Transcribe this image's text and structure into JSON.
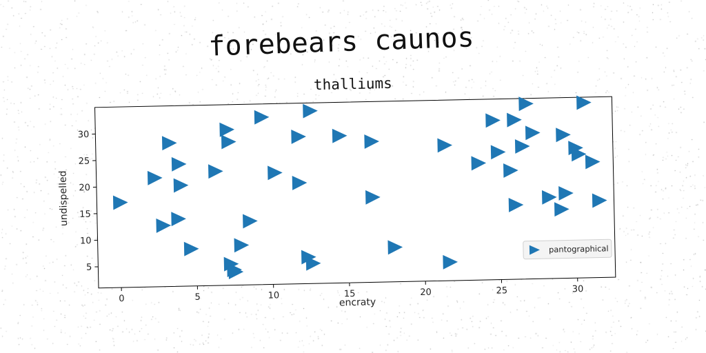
{
  "suptitle": "forebears caunos",
  "chart_data": {
    "type": "scatter",
    "title": "thalliums",
    "xlabel": "encraty",
    "ylabel": "undispelled",
    "xlim": [
      -1.5,
      32.5
    ],
    "ylim": [
      1,
      35
    ],
    "xticks": [
      "0",
      "5",
      "10",
      "15",
      "20",
      "25",
      "30"
    ],
    "yticks": [
      "5",
      "10",
      "15",
      "20",
      "25",
      "30"
    ],
    "grid": false,
    "legend_position": "lower-right",
    "marker": "triangle-right",
    "color": "#1f77b4",
    "series": [
      {
        "name": "pantographical",
        "points": [
          [
            0,
            17
          ],
          [
            2.3,
            21.5
          ],
          [
            3.3,
            28
          ],
          [
            2.8,
            12.5
          ],
          [
            3.8,
            13.7
          ],
          [
            3.9,
            24
          ],
          [
            4,
            20
          ],
          [
            4.6,
            8
          ],
          [
            6.3,
            22.5
          ],
          [
            7.1,
            30.3
          ],
          [
            7.2,
            28
          ],
          [
            7.4,
            3.9
          ],
          [
            7.2,
            5
          ],
          [
            7.5,
            3.5
          ],
          [
            7.9,
            8.5
          ],
          [
            8.5,
            13
          ],
          [
            9.4,
            32.5
          ],
          [
            10.2,
            22
          ],
          [
            11.8,
            20
          ],
          [
            11.8,
            28.7
          ],
          [
            12.3,
            6
          ],
          [
            12.6,
            4.8
          ],
          [
            12.6,
            33.5
          ],
          [
            14.5,
            28.7
          ],
          [
            16.6,
            27.5
          ],
          [
            16.6,
            17
          ],
          [
            18,
            7.5
          ],
          [
            21.4,
            26.5
          ],
          [
            21.6,
            4.5
          ],
          [
            23.6,
            23
          ],
          [
            24.6,
            31
          ],
          [
            24.9,
            25
          ],
          [
            25.7,
            21.5
          ],
          [
            26,
            15
          ],
          [
            26,
            31
          ],
          [
            26.5,
            26
          ],
          [
            26.8,
            34
          ],
          [
            27.2,
            28.5
          ],
          [
            28.2,
            16.3
          ],
          [
            29,
            14
          ],
          [
            29.2,
            28
          ],
          [
            29.3,
            17
          ],
          [
            30,
            25.5
          ],
          [
            30.2,
            24.3
          ],
          [
            30.6,
            34
          ],
          [
            31.1,
            22.8
          ],
          [
            31.5,
            15.5
          ]
        ]
      }
    ]
  }
}
